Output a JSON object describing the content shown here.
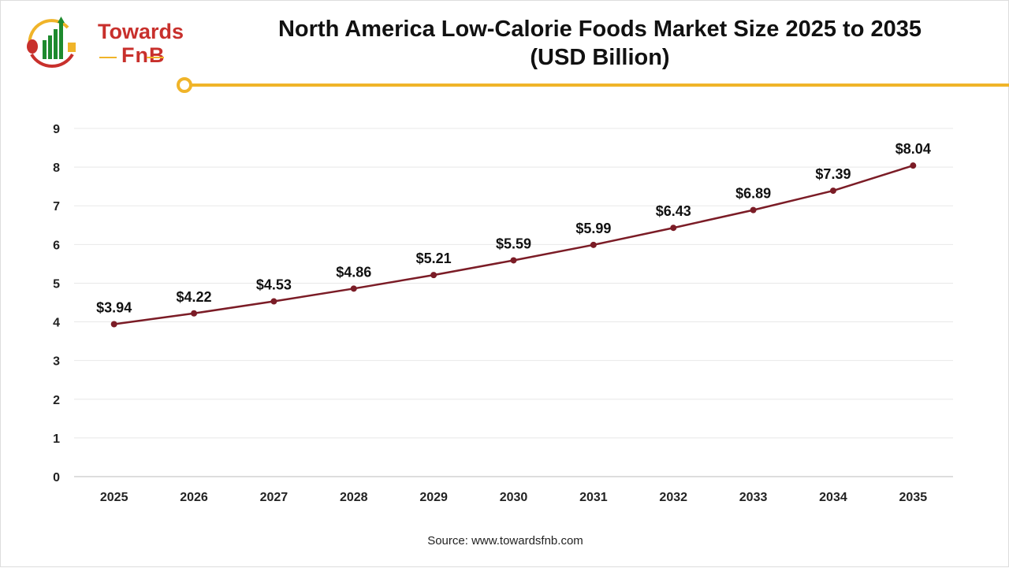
{
  "logo": {
    "line1": "Towards",
    "line2": "FnB",
    "colors": {
      "red": "#c8302c",
      "green": "#1e8a2e",
      "yellow": "#f0b429"
    }
  },
  "title_line1": "North America Low-Calorie Foods Market Size 2025 to 2035",
  "title_line2": "(USD Billion)",
  "source": "Source: www.towardsfnb.com",
  "accent_color": "#f0b429",
  "chart_data": {
    "type": "line",
    "categories": [
      "2025",
      "2026",
      "2027",
      "2028",
      "2029",
      "2030",
      "2031",
      "2032",
      "2033",
      "2034",
      "2035"
    ],
    "values": [
      3.94,
      4.22,
      4.53,
      4.86,
      5.21,
      5.59,
      5.99,
      6.43,
      6.89,
      7.39,
      8.04
    ],
    "labels": [
      "$3.94",
      "$4.22",
      "$4.53",
      "$4.86",
      "$5.21",
      "$5.59",
      "$5.99",
      "$6.43",
      "$6.89",
      "$7.39",
      "$8.04"
    ],
    "ylim": [
      0,
      9
    ],
    "yticks": [
      "0",
      "1",
      "2",
      "3",
      "4",
      "5",
      "6",
      "7",
      "8",
      "9"
    ],
    "grid": true,
    "line_color": "#7b1c26"
  }
}
